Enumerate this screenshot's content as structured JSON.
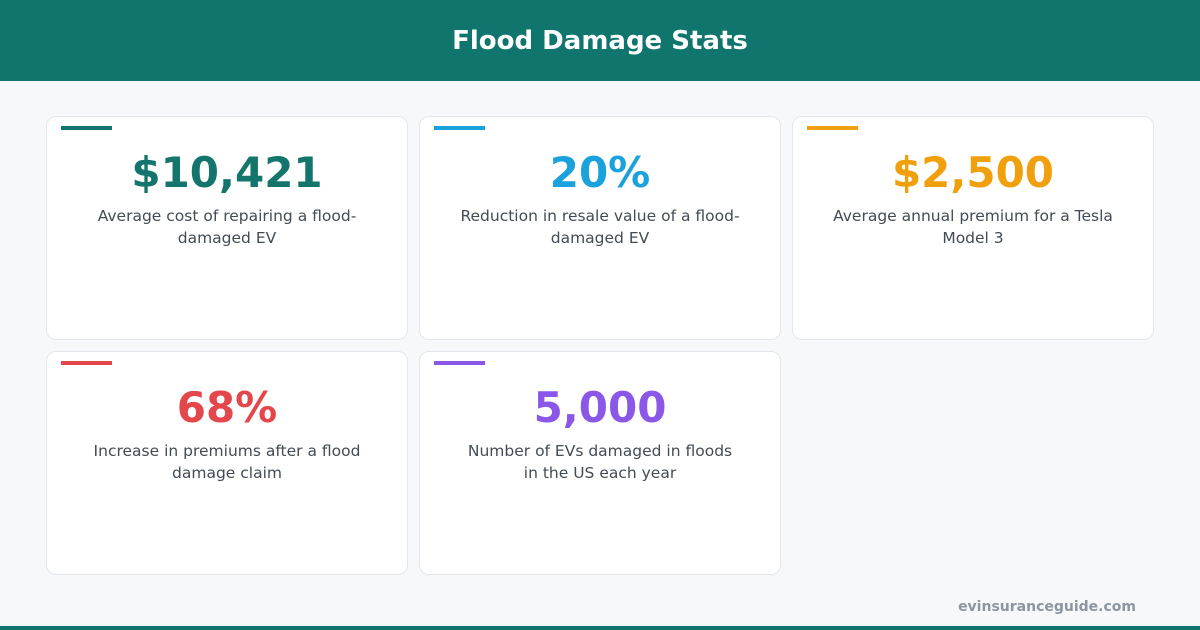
{
  "header": {
    "title": "Flood Damage Stats"
  },
  "cards": [
    {
      "value": "$10,421",
      "description": "Average cost of repairing a flood-damaged EV",
      "color": "#13756c"
    },
    {
      "value": "20%",
      "description": "Reduction in resale value of a flood-damaged EV",
      "color": "#1ba1dc"
    },
    {
      "value": "$2,500",
      "description": "Average annual premium for a Tesla Model 3",
      "color": "#f0a00d"
    },
    {
      "value": "68%",
      "description": "Increase in premiums after a flood damage claim",
      "color": "#e4474b"
    },
    {
      "value": "5,000",
      "description": "Number of EVs damaged in floods in the US each year",
      "color": "#8b57e8"
    }
  ],
  "footer": {
    "source": "evinsuranceguide.com"
  }
}
